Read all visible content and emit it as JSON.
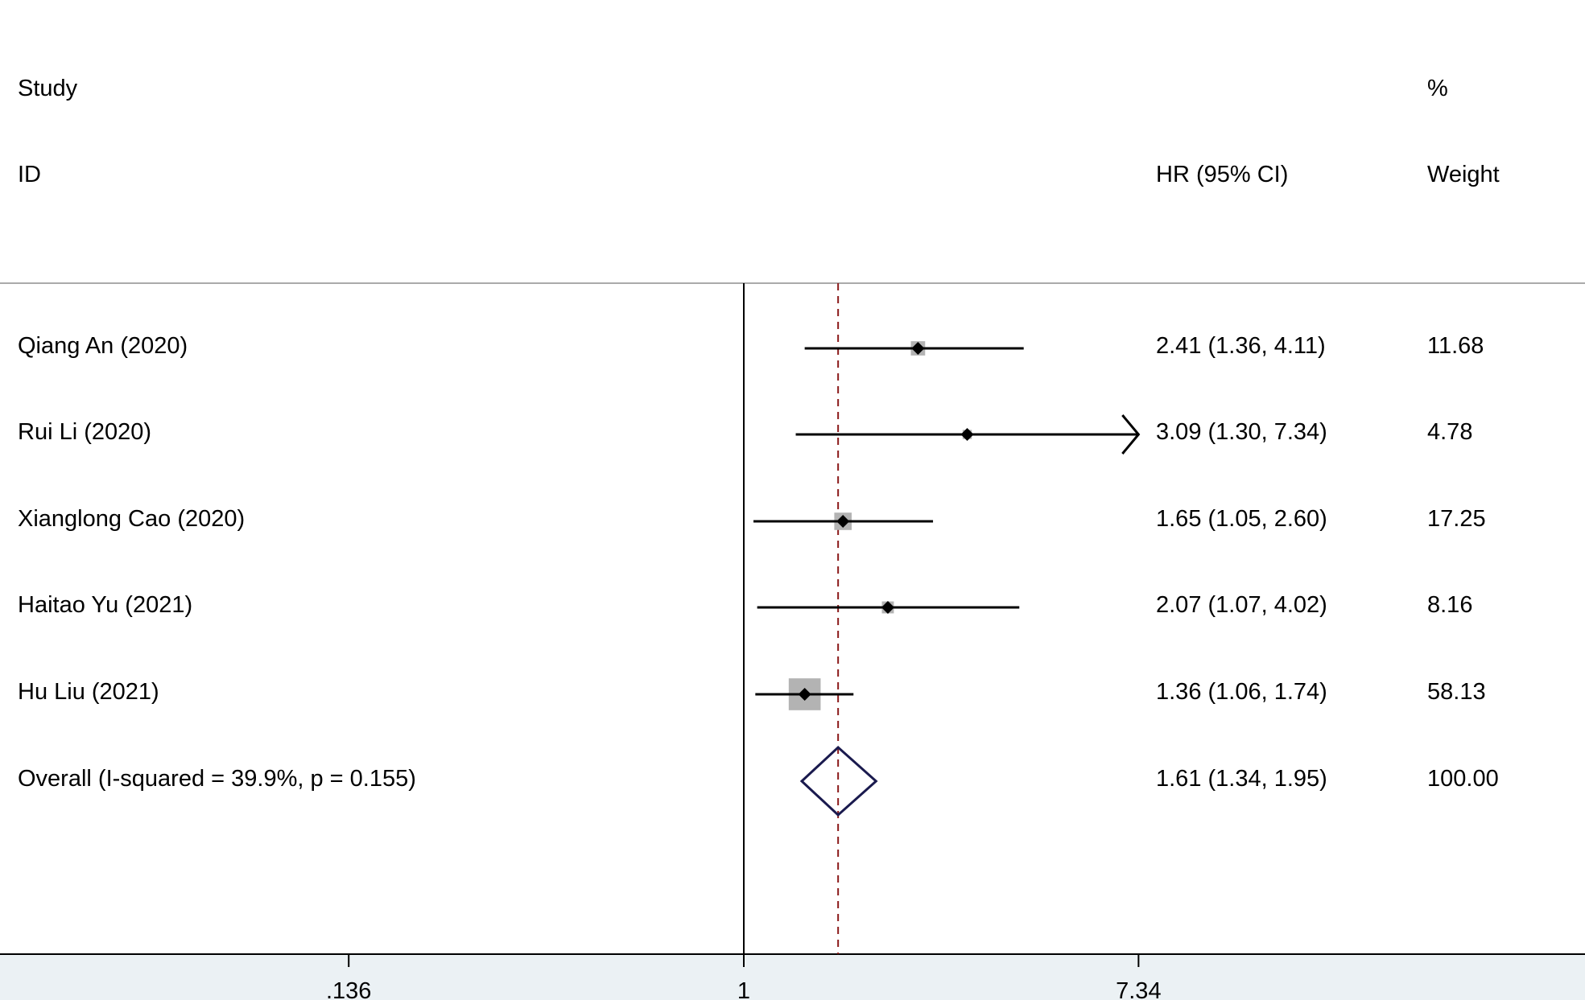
{
  "headers": {
    "study_line1": "Study",
    "study_line2": "ID",
    "effect": "HR (95% CI)",
    "weight_line1": "%",
    "weight_line2": "Weight"
  },
  "chart_data": {
    "type": "forest",
    "scale": "log",
    "reference_line": 1,
    "overall_line": 1.61,
    "xticks": [
      0.136,
      1,
      7.34
    ],
    "xtick_labels": [
      ".136",
      "1",
      "7.34"
    ],
    "studies": [
      {
        "label": "Qiang An (2020)",
        "hr": 2.41,
        "lo": 1.36,
        "hi": 4.11,
        "ci_text": "2.41 (1.36, 4.11)",
        "weight": 11.68,
        "weight_text": "11.68"
      },
      {
        "label": "Rui Li (2020)",
        "hr": 3.09,
        "lo": 1.3,
        "hi": 7.34,
        "ci_text": "3.09 (1.30, 7.34)",
        "weight": 4.78,
        "weight_text": "4.78",
        "arrow": true
      },
      {
        "label": "Xianglong Cao (2020)",
        "hr": 1.65,
        "lo": 1.05,
        "hi": 2.6,
        "ci_text": "1.65 (1.05, 2.60)",
        "weight": 17.25,
        "weight_text": "17.25"
      },
      {
        "label": "Haitao Yu (2021)",
        "hr": 2.07,
        "lo": 1.07,
        "hi": 4.02,
        "ci_text": "2.07 (1.07, 4.02)",
        "weight": 8.16,
        "weight_text": "8.16"
      },
      {
        "label": "Hu Liu (2021)",
        "hr": 1.36,
        "lo": 1.06,
        "hi": 1.74,
        "ci_text": "1.36 (1.06, 1.74)",
        "weight": 58.13,
        "weight_text": "58.13"
      }
    ],
    "overall": {
      "label": "Overall  (I-squared = 39.9%, p = 0.155)",
      "hr": 1.61,
      "lo": 1.34,
      "hi": 1.95,
      "ci_text": "1.61 (1.34, 1.95)",
      "weight_text": "100.00"
    },
    "colors": {
      "marker": "#000000",
      "box": "#b3b3b3",
      "diamond": "#1a1a4e",
      "overall_line": "#8b1a1a",
      "axis": "#000000",
      "divider": "#aaaaaa"
    }
  }
}
